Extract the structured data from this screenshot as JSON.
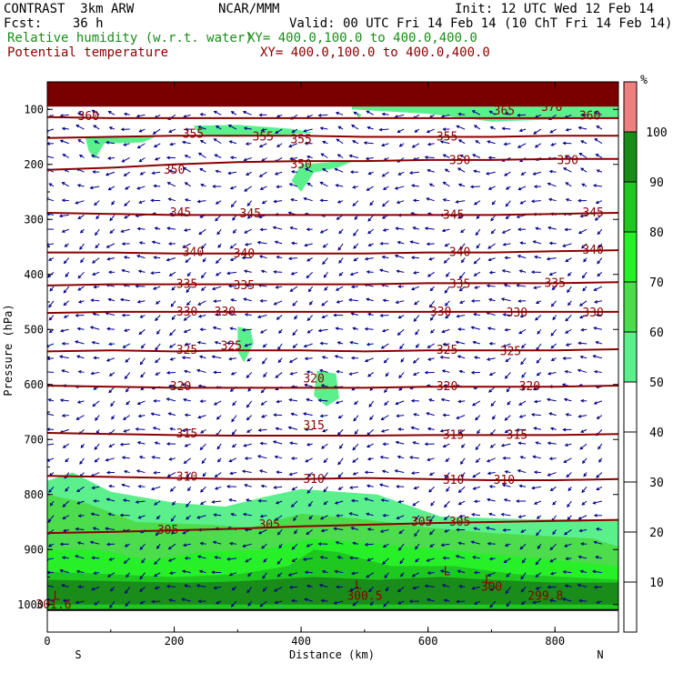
{
  "header": {
    "line1_left": "CONTRAST  3km ARW",
    "line1_center": "NCAR/MMM",
    "line1_right": "Init: 12 UTC Wed 12 Feb 14",
    "line2_left": "Fcst:    36 h",
    "line2_right": "Valid: 00 UTC Fri 14 Feb 14 (10 ChT Fri 14 Feb 14)",
    "field1_name": "Relative humidity (w.r.t. water)",
    "field1_xy": "XY= 400.0,100.0 to 400.0,400.0",
    "field2_name": "Potential temperature",
    "field2_xy": "XY= 400.0,100.0 to 400.0,400.0"
  },
  "colors": {
    "theta": "#8b0000",
    "wind": "#00008b",
    "rh_50_60": "#5cf08c",
    "rh_60_70": "#4cdc4c",
    "rh_70_80": "#28f028",
    "rh_80_90": "#1ec81e",
    "rh_90_100": "#1a8c1a",
    "rh_100_plus": "#0a640a",
    "rh_top": "#f08080",
    "top_band": "#7a0000"
  },
  "chart_data": {
    "type": "heatmap",
    "title": "",
    "xlabel": "Distance (km)",
    "ylabel": "Pressure (hPa)",
    "xlim": [
      0,
      900
    ],
    "ylim": [
      1050,
      50
    ],
    "x_ticks": [
      0,
      200,
      400,
      600,
      800
    ],
    "x_tick_labels": [
      "0",
      "200",
      "400",
      "600",
      "800"
    ],
    "y_ticks": [
      100,
      200,
      300,
      400,
      500,
      600,
      700,
      800,
      900,
      1000
    ],
    "y_tick_labels": [
      "100",
      "200",
      "300",
      "400",
      "500",
      "600",
      "700",
      "800",
      "900",
      "1000"
    ],
    "x_end_labels": [
      "S",
      "N"
    ],
    "colorbar": {
      "unit": "%",
      "levels": [
        10,
        20,
        30,
        40,
        50,
        60,
        70,
        80,
        90,
        100
      ],
      "level_labels": [
        "10",
        "20",
        "30",
        "40",
        "50",
        "60",
        "70",
        "80",
        "90",
        "100"
      ],
      "filled_bins": [
        {
          "from": 50,
          "to": 60,
          "color": "#5cf08c"
        },
        {
          "from": 60,
          "to": 70,
          "color": "#4cdc4c"
        },
        {
          "from": 70,
          "to": 80,
          "color": "#28f028"
        },
        {
          "from": 80,
          "to": 90,
          "color": "#1ec81e"
        },
        {
          "from": 90,
          "to": 100,
          "color": "#1a8c1a"
        },
        {
          "from": 100,
          "to": 105,
          "color": "#f08080"
        }
      ]
    },
    "theta_contours": [
      {
        "value": 305,
        "pressures": [
          870,
          868,
          865,
          862,
          858,
          855,
          852,
          850,
          848,
          846
        ]
      },
      {
        "value": 310,
        "pressures": [
          766,
          768,
          770,
          772,
          772,
          770,
          772,
          774,
          774,
          772
        ]
      },
      {
        "value": 315,
        "pressures": [
          688,
          690,
          692,
          693,
          693,
          693,
          692,
          692,
          692,
          690
        ]
      },
      {
        "value": 320,
        "pressures": [
          602,
          604,
          606,
          606,
          606,
          606,
          604,
          604,
          604,
          602
        ]
      },
      {
        "value": 325,
        "pressures": [
          540,
          538,
          540,
          538,
          538,
          540,
          538,
          538,
          538,
          536
        ]
      },
      {
        "value": 330,
        "pressures": [
          470,
          468,
          468,
          468,
          468,
          468,
          468,
          468,
          468,
          468
        ]
      },
      {
        "value": 335,
        "pressures": [
          420,
          418,
          418,
          418,
          418,
          418,
          416,
          416,
          416,
          414
        ]
      },
      {
        "value": 340,
        "pressures": [
          360,
          360,
          362,
          362,
          362,
          362,
          360,
          360,
          358,
          356
        ]
      },
      {
        "value": 345,
        "pressures": [
          288,
          290,
          292,
          292,
          292,
          292,
          292,
          292,
          290,
          288
        ]
      },
      {
        "value": 350,
        "pressures": [
          210,
          206,
          200,
          196,
          194,
          194,
          192,
          192,
          190,
          190
        ]
      },
      {
        "value": 355,
        "pressures": [
          152,
          150,
          148,
          148,
          148,
          150,
          150,
          150,
          148,
          148
        ]
      },
      {
        "value": 360,
        "pressures": [
          114,
          116,
          116,
          116,
          116,
          116,
          116,
          116,
          116,
          116
        ]
      }
    ],
    "theta_labels": [
      {
        "text": "360",
        "x": 65,
        "p": 113
      },
      {
        "text": "365",
        "x": 720,
        "p": 103
      },
      {
        "text": "370",
        "x": 795,
        "p": 96
      },
      {
        "text": "360",
        "x": 855,
        "p": 112
      },
      {
        "text": "355",
        "x": 230,
        "p": 145
      },
      {
        "text": "355",
        "x": 340,
        "p": 150
      },
      {
        "text": "355",
        "x": 400,
        "p": 155
      },
      {
        "text": "355",
        "x": 630,
        "p": 150
      },
      {
        "text": "350",
        "x": 200,
        "p": 210
      },
      {
        "text": "350",
        "x": 400,
        "p": 200
      },
      {
        "text": "350",
        "x": 650,
        "p": 193
      },
      {
        "text": "350",
        "x": 820,
        "p": 193
      },
      {
        "text": "345",
        "x": 210,
        "p": 288
      },
      {
        "text": "345",
        "x": 320,
        "p": 290
      },
      {
        "text": "345",
        "x": 640,
        "p": 292
      },
      {
        "text": "345",
        "x": 860,
        "p": 288
      },
      {
        "text": "340",
        "x": 230,
        "p": 360
      },
      {
        "text": "340",
        "x": 310,
        "p": 362
      },
      {
        "text": "340",
        "x": 650,
        "p": 360
      },
      {
        "text": "340",
        "x": 860,
        "p": 356
      },
      {
        "text": "335",
        "x": 220,
        "p": 418
      },
      {
        "text": "335",
        "x": 310,
        "p": 420
      },
      {
        "text": "335",
        "x": 650,
        "p": 418
      },
      {
        "text": "335",
        "x": 800,
        "p": 416
      },
      {
        "text": "330",
        "x": 220,
        "p": 468
      },
      {
        "text": "330",
        "x": 280,
        "p": 468
      },
      {
        "text": "330",
        "x": 620,
        "p": 468
      },
      {
        "text": "330",
        "x": 740,
        "p": 470
      },
      {
        "text": "330",
        "x": 860,
        "p": 470
      },
      {
        "text": "325",
        "x": 220,
        "p": 538
      },
      {
        "text": "325",
        "x": 290,
        "p": 530
      },
      {
        "text": "325",
        "x": 630,
        "p": 538
      },
      {
        "text": "325",
        "x": 730,
        "p": 540
      },
      {
        "text": "320",
        "x": 210,
        "p": 604
      },
      {
        "text": "320",
        "x": 420,
        "p": 590
      },
      {
        "text": "320",
        "x": 630,
        "p": 604
      },
      {
        "text": "320",
        "x": 760,
        "p": 604
      },
      {
        "text": "315",
        "x": 220,
        "p": 690
      },
      {
        "text": "315",
        "x": 420,
        "p": 675
      },
      {
        "text": "315",
        "x": 640,
        "p": 692
      },
      {
        "text": "315",
        "x": 740,
        "p": 692
      },
      {
        "text": "310",
        "x": 220,
        "p": 768
      },
      {
        "text": "310",
        "x": 420,
        "p": 772
      },
      {
        "text": "310",
        "x": 640,
        "p": 774
      },
      {
        "text": "310",
        "x": 720,
        "p": 774
      },
      {
        "text": "305",
        "x": 190,
        "p": 865
      },
      {
        "text": "305",
        "x": 350,
        "p": 855
      },
      {
        "text": "305",
        "x": 590,
        "p": 850
      },
      {
        "text": "305",
        "x": 650,
        "p": 850
      },
      {
        "text": "300.5",
        "x": 500,
        "p": 985
      },
      {
        "text": "300",
        "x": 700,
        "p": 968
      },
      {
        "text": "299.8",
        "x": 785,
        "p": 985
      },
      {
        "text": "301.6",
        "x": 10,
        "p": 1000
      }
    ],
    "low_markers": [
      {
        "text": "L",
        "x": 15,
        "p": 985
      },
      {
        "text": "L",
        "x": 490,
        "p": 965
      },
      {
        "text": "L",
        "x": 630,
        "p": 940
      },
      {
        "text": "L",
        "x": 695,
        "p": 955
      }
    ],
    "rh_regions": [
      {
        "level": "rh_50_60",
        "points": [
          [
            0,
            775
          ],
          [
            40,
            760
          ],
          [
            100,
            795
          ],
          [
            200,
            815
          ],
          [
            280,
            822
          ],
          [
            340,
            805
          ],
          [
            400,
            790
          ],
          [
            520,
            800
          ],
          [
            620,
            840
          ],
          [
            760,
            845
          ],
          [
            900,
            845
          ],
          [
            900,
            1010
          ],
          [
            0,
            1010
          ]
        ]
      },
      {
        "level": "rh_60_70",
        "points": [
          [
            0,
            800
          ],
          [
            60,
            815
          ],
          [
            140,
            850
          ],
          [
            260,
            855
          ],
          [
            320,
            860
          ],
          [
            400,
            835
          ],
          [
            500,
            845
          ],
          [
            600,
            860
          ],
          [
            700,
            870
          ],
          [
            860,
            880
          ],
          [
            900,
            895
          ],
          [
            900,
            1010
          ],
          [
            0,
            1010
          ]
        ]
      },
      {
        "level": "rh_70_80",
        "points": [
          [
            0,
            900
          ],
          [
            80,
            900
          ],
          [
            160,
            920
          ],
          [
            240,
            905
          ],
          [
            340,
            900
          ],
          [
            420,
            880
          ],
          [
            520,
            890
          ],
          [
            620,
            900
          ],
          [
            760,
            915
          ],
          [
            900,
            930
          ],
          [
            900,
            1010
          ],
          [
            0,
            1010
          ]
        ]
      },
      {
        "level": "rh_80_90",
        "points": [
          [
            0,
            940
          ],
          [
            100,
            945
          ],
          [
            200,
            950
          ],
          [
            300,
            945
          ],
          [
            380,
            930
          ],
          [
            420,
            900
          ],
          [
            460,
            905
          ],
          [
            540,
            930
          ],
          [
            640,
            930
          ],
          [
            740,
            945
          ],
          [
            900,
            955
          ],
          [
            900,
            1010
          ],
          [
            0,
            1010
          ]
        ]
      },
      {
        "level": "rh_90_100",
        "points": [
          [
            0,
            955
          ],
          [
            120,
            958
          ],
          [
            220,
            960
          ],
          [
            300,
            958
          ],
          [
            420,
            950
          ],
          [
            520,
            955
          ],
          [
            620,
            950
          ],
          [
            700,
            955
          ],
          [
            800,
            960
          ],
          [
            900,
            960
          ],
          [
            900,
            1000
          ],
          [
            0,
            1000
          ]
        ]
      },
      {
        "level": "rh_50_60",
        "points": [
          [
            60,
            152
          ],
          [
            100,
            148
          ],
          [
            170,
            150
          ],
          [
            150,
            160
          ],
          [
            90,
            162
          ],
          [
            75,
            190
          ],
          [
            65,
            175
          ]
        ]
      },
      {
        "level": "rh_50_60",
        "points": [
          [
            230,
            130
          ],
          [
            300,
            128
          ],
          [
            380,
            135
          ],
          [
            420,
            142
          ],
          [
            360,
            148
          ],
          [
            280,
            150
          ],
          [
            240,
            145
          ]
        ]
      },
      {
        "level": "rh_50_60",
        "points": [
          [
            480,
            100
          ],
          [
            600,
            108
          ],
          [
            700,
            122
          ],
          [
            900,
            115
          ],
          [
            900,
            95
          ],
          [
            480,
            95
          ]
        ]
      },
      {
        "level": "rh_50_60",
        "points": [
          [
            400,
            200
          ],
          [
            450,
            196
          ],
          [
            480,
            195
          ],
          [
            460,
            205
          ],
          [
            420,
            215
          ],
          [
            400,
            250
          ],
          [
            385,
            230
          ]
        ]
      },
      {
        "level": "rh_50_60",
        "points": [
          [
            300,
            495
          ],
          [
            320,
            500
          ],
          [
            325,
            525
          ],
          [
            310,
            560
          ],
          [
            300,
            540
          ]
        ]
      },
      {
        "level": "rh_50_60",
        "points": [
          [
            425,
            575
          ],
          [
            455,
            580
          ],
          [
            460,
            625
          ],
          [
            440,
            640
          ],
          [
            420,
            620
          ]
        ]
      },
      {
        "level": "rh_50_60",
        "points": [
          [
            488,
            105
          ],
          [
            495,
            110
          ],
          [
            490,
            118
          ]
        ]
      }
    ],
    "top_band": {
      "from_pressure": 50,
      "to_pressure": 95
    }
  }
}
